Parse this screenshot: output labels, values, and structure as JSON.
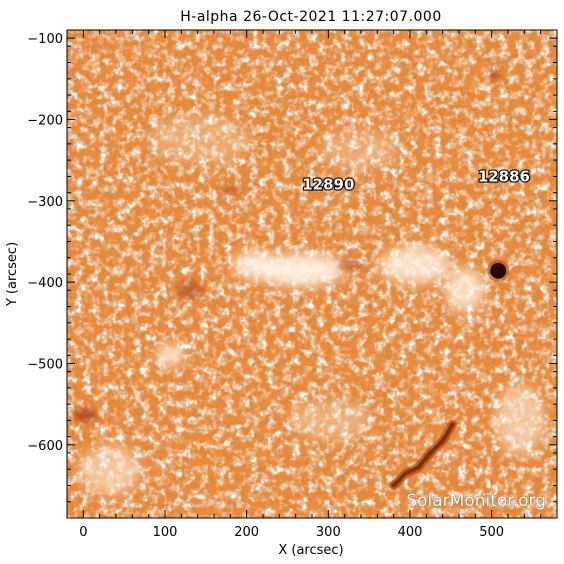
{
  "title": "H-alpha 26-Oct-2021 11:27:07.000",
  "x_axis": {
    "label": "X (arcsec)",
    "range": [
      -20,
      580
    ],
    "ticks": [
      0,
      100,
      200,
      300,
      400,
      500
    ],
    "tick_labels": [
      "0",
      "100",
      "200",
      "300",
      "400",
      "500"
    ]
  },
  "y_axis": {
    "label": "Y (arcsec)",
    "range": [
      -690,
      -90
    ],
    "ticks": [
      -100,
      -200,
      -300,
      -400,
      -500,
      -600
    ],
    "tick_labels": [
      "−100",
      "−200",
      "−300",
      "−400",
      "−500",
      "−600"
    ]
  },
  "regions": [
    {
      "label": "12890",
      "x": 300,
      "y": -280
    },
    {
      "label": "12886",
      "x": 515,
      "y": -270
    }
  ],
  "sunspots": [
    {
      "x": 508,
      "y": -386,
      "r": 8
    }
  ],
  "filament": [
    [
      380,
      -650
    ],
    [
      395,
      -635
    ],
    [
      410,
      -628
    ],
    [
      425,
      -610
    ],
    [
      440,
      -595
    ],
    [
      452,
      -575
    ]
  ],
  "watermark": "SolarMonitor.org",
  "colors": {
    "base": "#f08a3c",
    "bright": "#fff4e6",
    "dark": "#b24a10",
    "very_dark": "#6a2205"
  }
}
